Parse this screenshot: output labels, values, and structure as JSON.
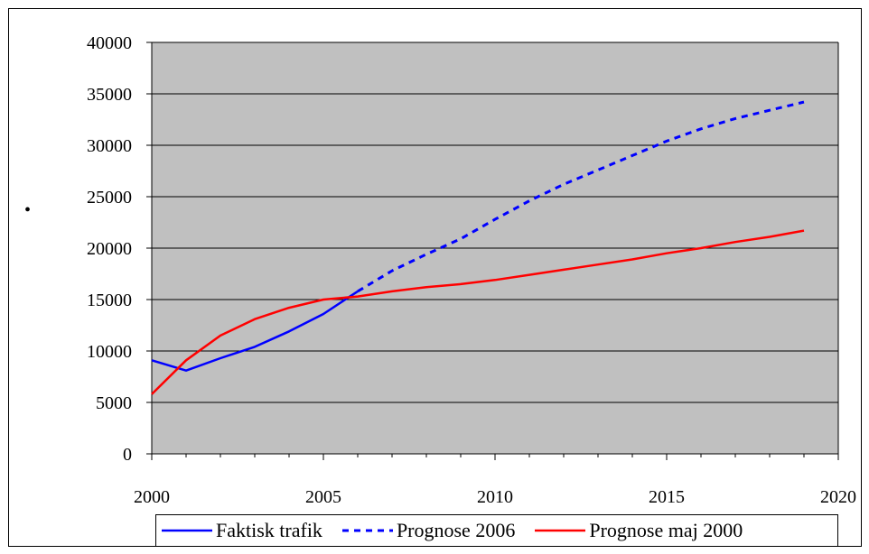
{
  "chart_data": {
    "type": "line",
    "title": "",
    "xlabel": "",
    "ylabel": "",
    "xlim": [
      2000,
      2020
    ],
    "ylim": [
      0,
      40000
    ],
    "x_ticks": [
      "2000",
      "2005",
      "2010",
      "2015",
      "2020"
    ],
    "y_ticks": [
      "0",
      "5000",
      "10000",
      "15000",
      "20000",
      "25000",
      "30000",
      "35000",
      "40000"
    ],
    "plot_background": "#c0c0c0",
    "grid": true,
    "legend_position": "bottom",
    "series": [
      {
        "name": "Faktisk trafik",
        "color": "#0000ff",
        "dash": "solid",
        "x": [
          2000,
          2001,
          2002,
          2003,
          2004,
          2005,
          2006
        ],
        "y": [
          9100,
          8100,
          9300,
          10400,
          11900,
          13600,
          15800
        ]
      },
      {
        "name": "Prognose 2006",
        "color": "#0000ff",
        "dash": "dashed",
        "x": [
          2006,
          2007,
          2008,
          2009,
          2010,
          2011,
          2012,
          2013,
          2014,
          2015,
          2016,
          2017,
          2018,
          2019
        ],
        "y": [
          15800,
          17800,
          19400,
          20900,
          22800,
          24600,
          26200,
          27600,
          29000,
          30400,
          31600,
          32600,
          33400,
          34200
        ]
      },
      {
        "name": "Prognose maj 2000",
        "color": "#ff0000",
        "dash": "solid",
        "x": [
          2000,
          2001,
          2002,
          2003,
          2004,
          2005,
          2006,
          2007,
          2008,
          2009,
          2010,
          2011,
          2012,
          2013,
          2014,
          2015,
          2016,
          2017,
          2018,
          2019
        ],
        "y": [
          5800,
          9100,
          11500,
          13100,
          14200,
          15000,
          15300,
          15800,
          16200,
          16500,
          16900,
          17400,
          17900,
          18400,
          18900,
          19500,
          20000,
          20600,
          21100,
          21700
        ]
      }
    ]
  },
  "stray_mark": "•"
}
